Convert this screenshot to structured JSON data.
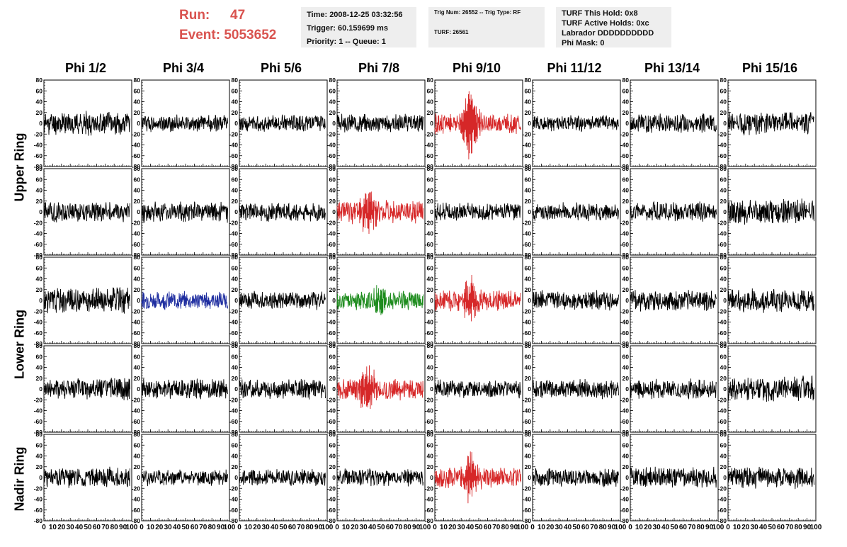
{
  "run_info": {
    "run_label": "Run:",
    "run_value": "47",
    "event_label": "Event:",
    "event_value": "5053652"
  },
  "info_box_1": {
    "line1": "Time: 2008-12-25 03:32:56",
    "line2": "Trigger: 60.159699 ms",
    "line3": "Priority: 1 -- Queue: 1"
  },
  "info_box_2": {
    "line1": "Trig Num: 26552 -- Trig Type: RF",
    "line2": "TURF: 26561"
  },
  "info_box_3": {
    "line1": "TURF This Hold: 0x8",
    "line2": "TURF Active Holds: 0xc",
    "line3": "Labrador DDDDDDDDDD",
    "line4": "Phi Mask: 0"
  },
  "columns": [
    "Phi 1/2",
    "Phi 3/4",
    "Phi 5/6",
    "Phi 7/8",
    "Phi 9/10",
    "Phi 11/12",
    "Phi 13/14",
    "Phi 15/16"
  ],
  "rings": [
    {
      "label": "Upper Ring",
      "rows": [
        0,
        1
      ]
    },
    {
      "label": "Lower Ring",
      "rows": [
        2,
        3
      ]
    },
    {
      "label": "Nadir Ring",
      "rows": [
        4
      ]
    }
  ],
  "colors": {
    "default": "#000000",
    "red": "#d62728",
    "blue": "#1f2ea0",
    "green": "#1e8c1e",
    "header_red": "#d9534f"
  },
  "chart_data": {
    "type": "line",
    "grid": "8 columns x 5 rows of waveform panels",
    "xlim": [
      0,
      100
    ],
    "ylim": [
      -80,
      80
    ],
    "x_ticks": [
      0,
      10,
      20,
      30,
      40,
      50,
      60,
      70,
      80,
      90,
      100
    ],
    "y_ticks": [
      -80,
      -60,
      -40,
      -20,
      0,
      20,
      40,
      60,
      80
    ],
    "points_per_trace": 260,
    "panels": [
      [
        {
          "color": "default",
          "amp": 18,
          "seed": 11
        },
        {
          "color": "default",
          "amp": 13,
          "seed": 12
        },
        {
          "color": "default",
          "amp": 13,
          "seed": 13
        },
        {
          "color": "default",
          "amp": 14,
          "seed": 14
        },
        {
          "color": "red",
          "amp": 16,
          "seed": 15,
          "pulse_at": 40,
          "pulse_amp": 55
        },
        {
          "color": "default",
          "amp": 12,
          "seed": 16
        },
        {
          "color": "default",
          "amp": 15,
          "seed": 17
        },
        {
          "color": "default",
          "amp": 18,
          "seed": 18
        }
      ],
      [
        {
          "color": "default",
          "amp": 16,
          "seed": 21
        },
        {
          "color": "default",
          "amp": 16,
          "seed": 22
        },
        {
          "color": "default",
          "amp": 15,
          "seed": 23
        },
        {
          "color": "red",
          "amp": 18,
          "seed": 24,
          "pulse_at": 35,
          "pulse_amp": 30
        },
        {
          "color": "default",
          "amp": 14,
          "seed": 25
        },
        {
          "color": "default",
          "amp": 14,
          "seed": 26
        },
        {
          "color": "default",
          "amp": 15,
          "seed": 27
        },
        {
          "color": "default",
          "amp": 20,
          "seed": 28
        }
      ],
      [
        {
          "color": "default",
          "amp": 20,
          "seed": 31
        },
        {
          "color": "blue",
          "amp": 14,
          "seed": 32
        },
        {
          "color": "default",
          "amp": 14,
          "seed": 33
        },
        {
          "color": "green",
          "amp": 15,
          "seed": 34,
          "pulse_at": 50,
          "pulse_amp": 18
        },
        {
          "color": "red",
          "amp": 16,
          "seed": 35,
          "pulse_at": 40,
          "pulse_amp": 28
        },
        {
          "color": "default",
          "amp": 15,
          "seed": 36
        },
        {
          "color": "default",
          "amp": 17,
          "seed": 37
        },
        {
          "color": "default",
          "amp": 18,
          "seed": 38
        }
      ],
      [
        {
          "color": "default",
          "amp": 17,
          "seed": 41
        },
        {
          "color": "default",
          "amp": 16,
          "seed": 42
        },
        {
          "color": "default",
          "amp": 15,
          "seed": 43
        },
        {
          "color": "red",
          "amp": 17,
          "seed": 44,
          "pulse_at": 35,
          "pulse_amp": 30
        },
        {
          "color": "default",
          "amp": 14,
          "seed": 45
        },
        {
          "color": "default",
          "amp": 15,
          "seed": 46
        },
        {
          "color": "default",
          "amp": 15,
          "seed": 47
        },
        {
          "color": "default",
          "amp": 21,
          "seed": 48
        }
      ],
      [
        {
          "color": "default",
          "amp": 16,
          "seed": 51
        },
        {
          "color": "default",
          "amp": 13,
          "seed": 52
        },
        {
          "color": "default",
          "amp": 13,
          "seed": 53
        },
        {
          "color": "default",
          "amp": 14,
          "seed": 54
        },
        {
          "color": "red",
          "amp": 16,
          "seed": 55,
          "pulse_at": 40,
          "pulse_amp": 35
        },
        {
          "color": "default",
          "amp": 14,
          "seed": 56
        },
        {
          "color": "default",
          "amp": 16,
          "seed": 57
        },
        {
          "color": "default",
          "amp": 17,
          "seed": 58
        }
      ]
    ]
  }
}
